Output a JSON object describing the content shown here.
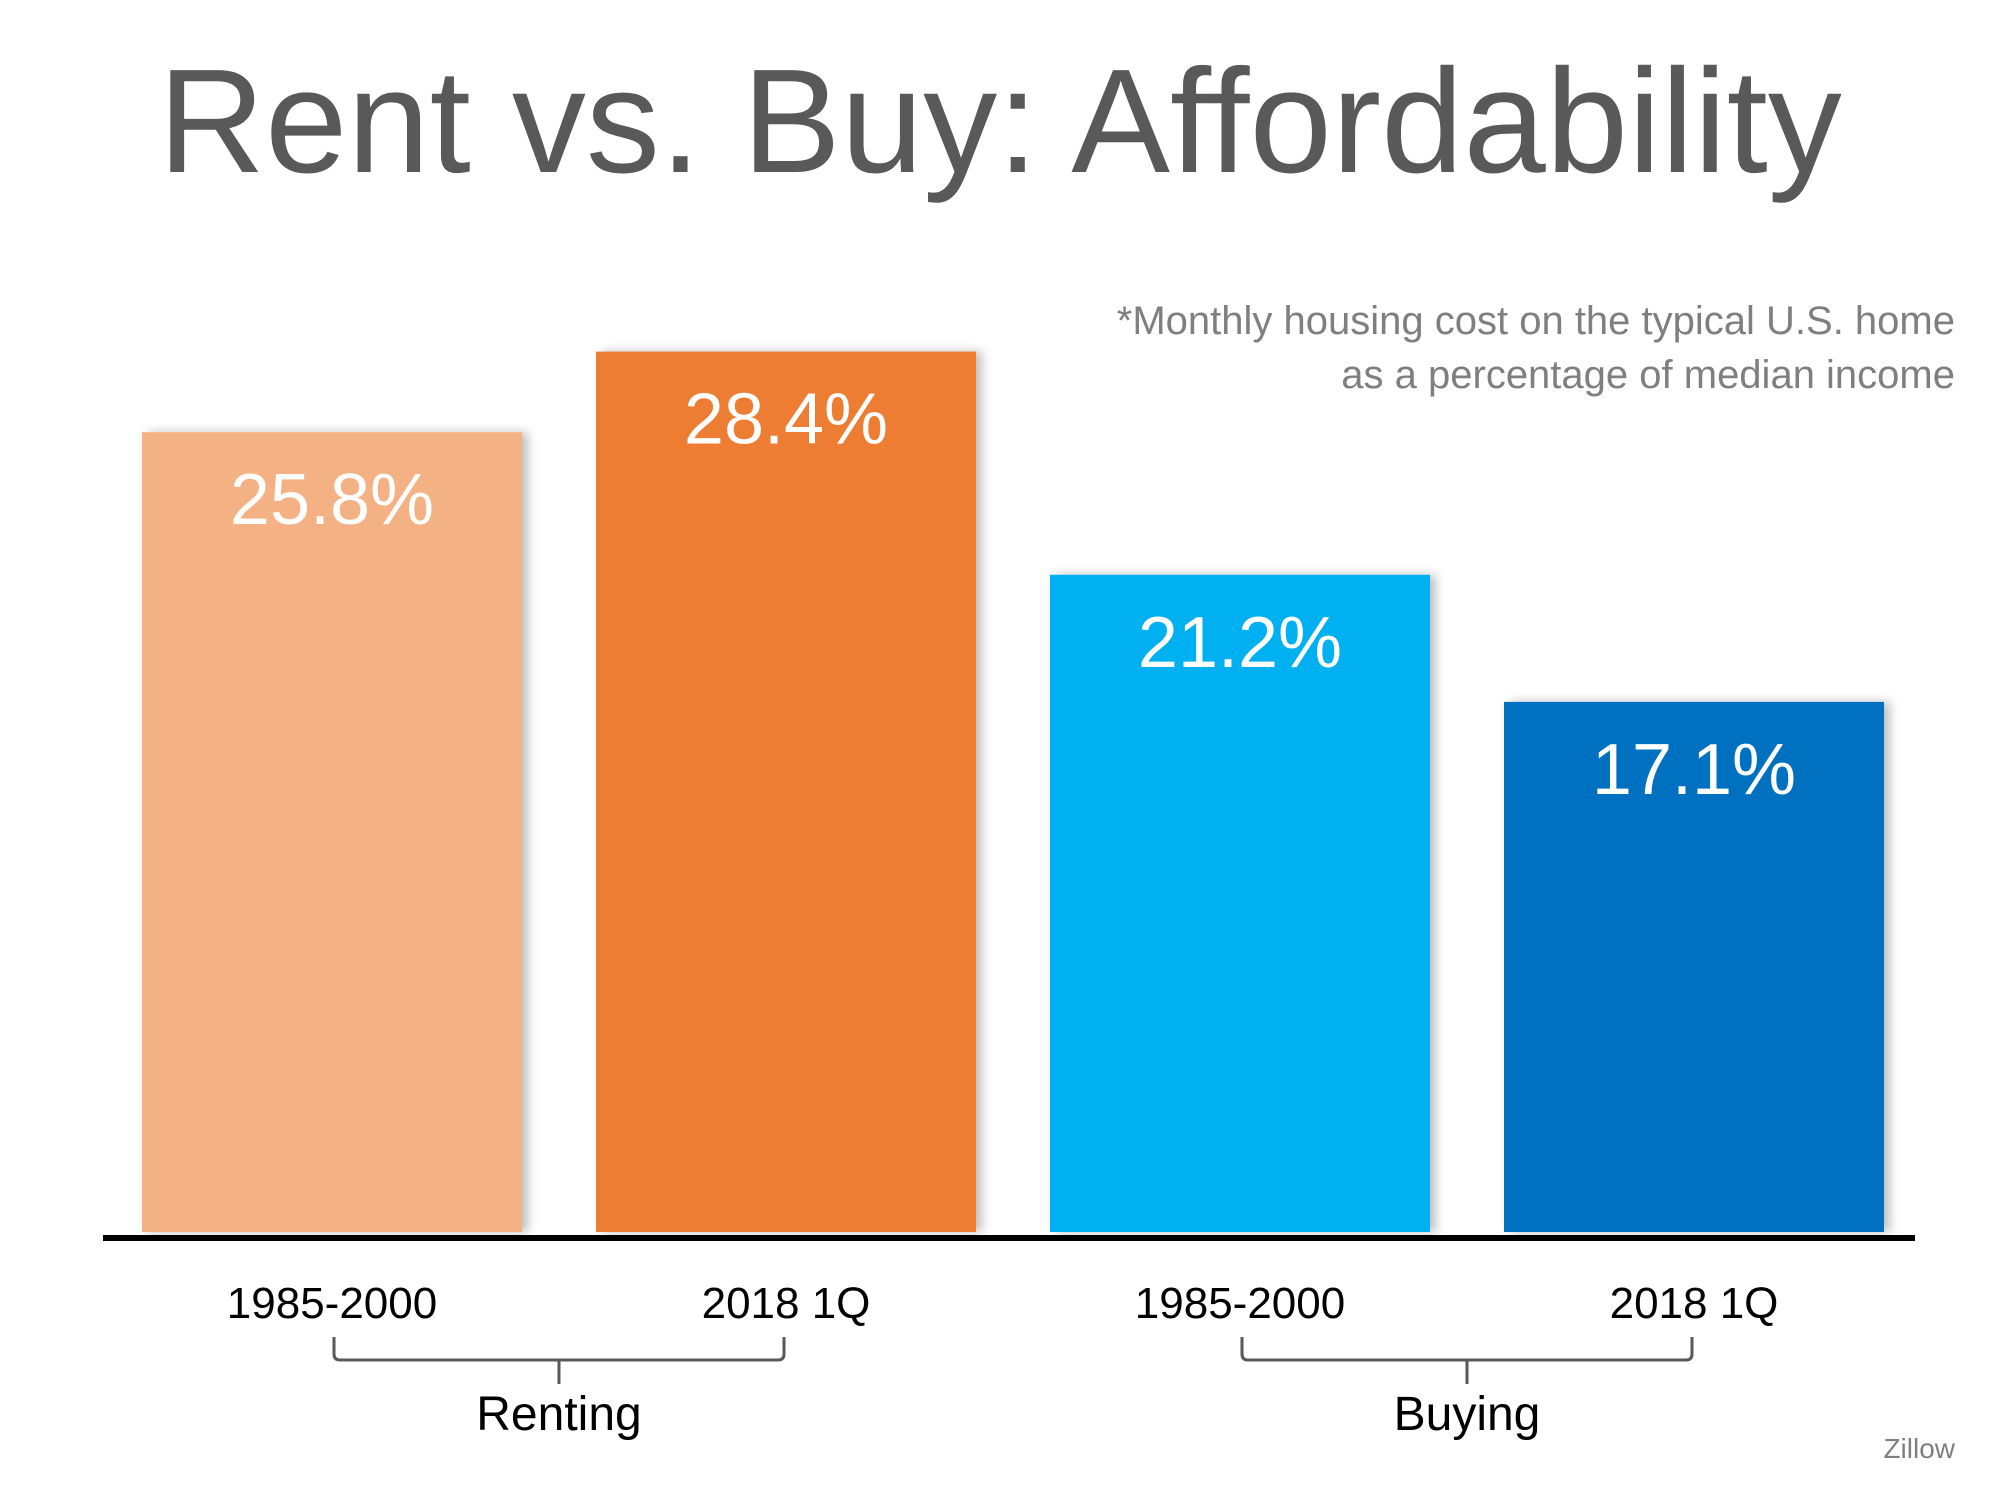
{
  "chart_data": {
    "type": "bar",
    "title": "Rent vs. Buy: Affordability",
    "note": [
      "*Monthly housing cost on the typical U.S. home",
      "as a percentage of median income"
    ],
    "categories": [
      "1985-2000",
      "2018 1Q",
      "1985-2000",
      "2018 1Q"
    ],
    "values": [
      25.8,
      28.4,
      21.2,
      17.1
    ],
    "value_labels": [
      "25.8%",
      "28.4%",
      "21.2%",
      "17.1%"
    ],
    "colors": [
      "#f4b183",
      "#ed7d31",
      "#00b0f0",
      "#0070c0"
    ],
    "groups": [
      {
        "label": "Renting",
        "category_indices": [
          0,
          1
        ]
      },
      {
        "label": "Buying",
        "category_indices": [
          2,
          3
        ]
      }
    ],
    "ylim": [
      0,
      30
    ],
    "grid": false,
    "xlabel": "",
    "ylabel": "",
    "source": "Zillow"
  }
}
